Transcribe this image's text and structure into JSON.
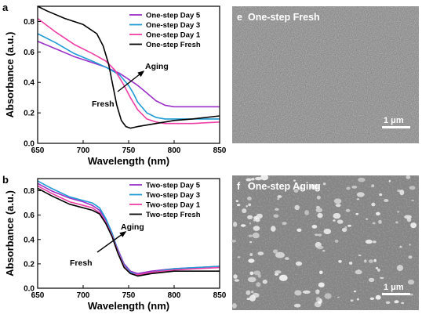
{
  "chart_data": [
    {
      "type": "line",
      "panel": "a",
      "xlabel": "Wavelength (nm)",
      "ylabel": "Absorbance (a.u.)",
      "xlim": [
        650,
        850
      ],
      "ylim": [
        0.0,
        0.9
      ],
      "xticks": [
        650,
        700,
        750,
        800,
        850
      ],
      "yticks": [
        0.0,
        0.2,
        0.4,
        0.6,
        0.8
      ],
      "xtick_labels": [
        "650",
        "700",
        "750",
        "800",
        "850"
      ],
      "ytick_labels": [
        "0.0",
        "0.2",
        "0.4",
        "0.6",
        "0.8"
      ],
      "legend_position": "top-right",
      "annotations": {
        "from": "Fresh",
        "to": "Aging"
      },
      "series": [
        {
          "name": "One-step Day 5",
          "color": "#9b30c8",
          "x": [
            650,
            670,
            690,
            710,
            725,
            740,
            750,
            760,
            770,
            780,
            790,
            800,
            820,
            850
          ],
          "y": [
            0.67,
            0.62,
            0.57,
            0.53,
            0.5,
            0.46,
            0.42,
            0.38,
            0.33,
            0.28,
            0.25,
            0.24,
            0.24,
            0.24
          ]
        },
        {
          "name": "One-step Day 3",
          "color": "#1f9bd6",
          "x": [
            650,
            670,
            690,
            710,
            725,
            740,
            750,
            755,
            760,
            770,
            780,
            790,
            800,
            820,
            850
          ],
          "y": [
            0.72,
            0.66,
            0.59,
            0.54,
            0.5,
            0.45,
            0.38,
            0.33,
            0.27,
            0.2,
            0.17,
            0.16,
            0.16,
            0.16,
            0.16
          ]
        },
        {
          "name": "One-step Day 1",
          "color": "#ee3fa6",
          "x": [
            650,
            670,
            690,
            710,
            725,
            735,
            745,
            752,
            760,
            770,
            780,
            790,
            800,
            820,
            850
          ],
          "y": [
            0.82,
            0.73,
            0.65,
            0.59,
            0.54,
            0.48,
            0.38,
            0.3,
            0.22,
            0.16,
            0.14,
            0.13,
            0.13,
            0.13,
            0.14
          ]
        },
        {
          "name": "One-step Fresh",
          "color": "#000000",
          "x": [
            650,
            660,
            680,
            700,
            715,
            722,
            728,
            732,
            737,
            742,
            747,
            752,
            760,
            780,
            800,
            820,
            850
          ],
          "y": [
            0.9,
            0.87,
            0.82,
            0.78,
            0.72,
            0.64,
            0.52,
            0.4,
            0.25,
            0.15,
            0.11,
            0.1,
            0.11,
            0.13,
            0.15,
            0.16,
            0.18
          ]
        }
      ]
    },
    {
      "type": "line",
      "panel": "b",
      "xlabel": "Wavelength (nm)",
      "ylabel": "Absorbance (a.u.)",
      "xlim": [
        650,
        850
      ],
      "ylim": [
        0.0,
        0.9
      ],
      "xticks": [
        650,
        700,
        750,
        800,
        850
      ],
      "yticks": [
        0.0,
        0.2,
        0.4,
        0.6,
        0.8
      ],
      "xtick_labels": [
        "650",
        "700",
        "750",
        "800",
        "850"
      ],
      "ytick_labels": [
        "0.0",
        "0.2",
        "0.4",
        "0.6",
        "0.8"
      ],
      "legend_position": "top-right",
      "annotations": {
        "from": "Fresh",
        "to": "Aging"
      },
      "series": [
        {
          "name": "Two-step Day 5",
          "color": "#9b30c8",
          "x": [
            650,
            665,
            685,
            700,
            710,
            718,
            725,
            732,
            738,
            745,
            752,
            760,
            775,
            800,
            825,
            850
          ],
          "y": [
            0.86,
            0.8,
            0.74,
            0.71,
            0.68,
            0.64,
            0.56,
            0.44,
            0.32,
            0.2,
            0.14,
            0.12,
            0.14,
            0.16,
            0.17,
            0.18
          ]
        },
        {
          "name": "Two-step Day 3",
          "color": "#1f9bd6",
          "x": [
            650,
            665,
            685,
            700,
            710,
            718,
            725,
            732,
            738,
            745,
            752,
            760,
            775,
            800,
            825,
            850
          ],
          "y": [
            0.88,
            0.82,
            0.75,
            0.72,
            0.7,
            0.66,
            0.57,
            0.45,
            0.31,
            0.19,
            0.13,
            0.11,
            0.13,
            0.16,
            0.17,
            0.18
          ]
        },
        {
          "name": "Two-step Day 1",
          "color": "#ee3fa6",
          "x": [
            650,
            665,
            685,
            700,
            710,
            718,
            725,
            732,
            738,
            745,
            752,
            760,
            775,
            800,
            825,
            850
          ],
          "y": [
            0.84,
            0.78,
            0.71,
            0.68,
            0.66,
            0.62,
            0.54,
            0.43,
            0.3,
            0.18,
            0.12,
            0.11,
            0.13,
            0.15,
            0.16,
            0.17
          ]
        },
        {
          "name": "Two-step Fresh",
          "color": "#000000",
          "x": [
            650,
            665,
            685,
            700,
            710,
            718,
            725,
            732,
            738,
            745,
            752,
            760,
            775,
            800,
            825,
            850
          ],
          "y": [
            0.82,
            0.76,
            0.69,
            0.66,
            0.64,
            0.61,
            0.53,
            0.42,
            0.29,
            0.17,
            0.12,
            0.1,
            0.12,
            0.14,
            0.14,
            0.14
          ]
        }
      ]
    }
  ],
  "micrographs": [
    {
      "panel": "e",
      "title": "One-step Fresh",
      "scale_label": "1 μm",
      "texture": "fine"
    },
    {
      "panel": "f",
      "title": "One-step Aging",
      "scale_label": "1 μm",
      "texture": "grains"
    }
  ]
}
